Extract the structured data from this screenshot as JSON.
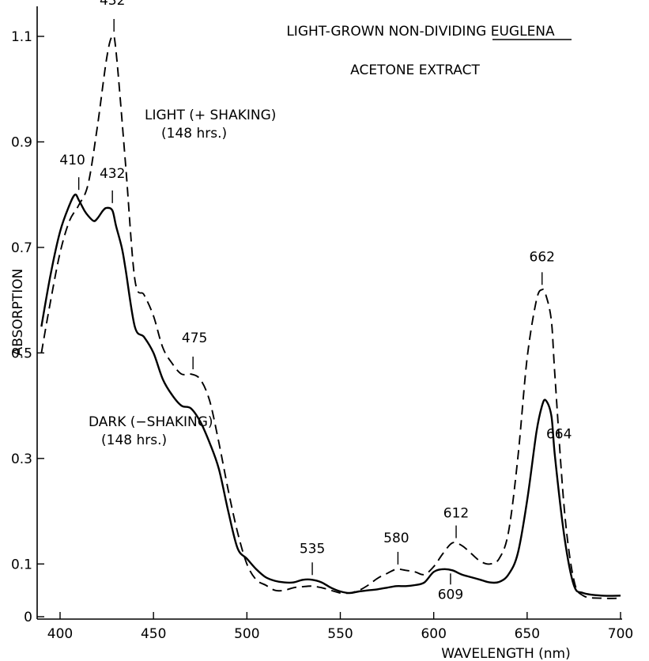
{
  "chart_data": {
    "type": "line",
    "title": "LIGHT-GROWN NON-DIVIDING EUGLENA",
    "subtitle": "ACETONE EXTRACT",
    "xlabel": "WAVELENGTH (nm)",
    "ylabel": "ABSORPTION",
    "xlim": [
      390,
      700
    ],
    "ylim": [
      0,
      1.16
    ],
    "x_ticks": [
      400,
      450,
      500,
      550,
      600,
      650,
      700
    ],
    "x_tick_labels": [
      "400",
      "450",
      "500",
      "550",
      "600",
      "650",
      "700"
    ],
    "y_ticks": [
      0,
      0.1,
      0.3,
      0.5,
      0.7,
      0.9,
      1.1
    ],
    "y_tick_labels": [
      "0",
      "0.1",
      "0.3",
      "0.5",
      "0.7",
      "0.9",
      "1.1"
    ],
    "grid": false,
    "series": [
      {
        "name": "LIGHT (+ SHAKING)",
        "name_line2": "(148 hrs.)",
        "style": "dashed",
        "x": [
          390,
          395,
          400,
          405,
          410,
          415,
          420,
          425,
          428,
          430,
          435,
          440,
          445,
          450,
          455,
          460,
          465,
          470,
          475,
          480,
          485,
          490,
          495,
          500,
          505,
          510,
          515,
          520,
          525,
          530,
          535,
          540,
          545,
          550,
          555,
          560,
          565,
          570,
          575,
          580,
          585,
          590,
          595,
          600,
          605,
          610,
          615,
          620,
          625,
          630,
          635,
          640,
          645,
          650,
          655,
          658,
          660,
          663,
          665,
          670,
          675,
          680,
          690,
          700
        ],
        "y": [
          0.5,
          0.6,
          0.69,
          0.75,
          0.78,
          0.82,
          0.93,
          1.06,
          1.1,
          1.07,
          0.86,
          0.64,
          0.61,
          0.57,
          0.51,
          0.48,
          0.46,
          0.46,
          0.45,
          0.41,
          0.33,
          0.24,
          0.16,
          0.1,
          0.07,
          0.06,
          0.05,
          0.05,
          0.055,
          0.057,
          0.058,
          0.055,
          0.05,
          0.045,
          0.045,
          0.05,
          0.06,
          0.073,
          0.082,
          0.09,
          0.088,
          0.085,
          0.08,
          0.095,
          0.12,
          0.14,
          0.135,
          0.12,
          0.105,
          0.1,
          0.11,
          0.16,
          0.3,
          0.49,
          0.6,
          0.62,
          0.61,
          0.56,
          0.45,
          0.2,
          0.07,
          0.04,
          0.035,
          0.035
        ],
        "annotations": [
          {
            "x": 428,
            "y": 1.1,
            "label": "432"
          },
          {
            "x": 472,
            "y": 0.46,
            "label": "475"
          },
          {
            "x": 580,
            "y": 0.09,
            "label": "580"
          },
          {
            "x": 612,
            "y": 0.14,
            "label": "612"
          },
          {
            "x": 658,
            "y": 0.62,
            "label": "662"
          }
        ]
      },
      {
        "name": "DARK (−SHAKING)",
        "name_line2": "(148 hrs.)",
        "style": "solid",
        "x": [
          390,
          395,
          400,
          405,
          408,
          410,
          413,
          415,
          418,
          420,
          423,
          425,
          428,
          430,
          433,
          435,
          440,
          445,
          450,
          455,
          460,
          465,
          470,
          475,
          480,
          485,
          490,
          495,
          500,
          505,
          510,
          515,
          520,
          525,
          530,
          535,
          540,
          545,
          550,
          555,
          560,
          565,
          570,
          575,
          580,
          585,
          590,
          595,
          600,
          605,
          610,
          615,
          620,
          625,
          630,
          635,
          640,
          645,
          650,
          655,
          658,
          660,
          663,
          665,
          670,
          675,
          680,
          690,
          700
        ],
        "y": [
          0.55,
          0.65,
          0.73,
          0.78,
          0.8,
          0.79,
          0.77,
          0.76,
          0.75,
          0.755,
          0.77,
          0.775,
          0.77,
          0.74,
          0.7,
          0.66,
          0.55,
          0.53,
          0.5,
          0.45,
          0.42,
          0.4,
          0.395,
          0.37,
          0.33,
          0.28,
          0.2,
          0.13,
          0.11,
          0.09,
          0.075,
          0.068,
          0.065,
          0.065,
          0.07,
          0.07,
          0.065,
          0.055,
          0.048,
          0.045,
          0.048,
          0.05,
          0.052,
          0.055,
          0.058,
          0.058,
          0.06,
          0.065,
          0.085,
          0.09,
          0.088,
          0.08,
          0.075,
          0.07,
          0.065,
          0.066,
          0.08,
          0.12,
          0.22,
          0.35,
          0.4,
          0.41,
          0.38,
          0.3,
          0.15,
          0.06,
          0.045,
          0.04,
          0.04
        ],
        "annotations": [
          {
            "x": 410,
            "y": 0.8,
            "label": "410"
          },
          {
            "x": 428,
            "y": 0.775,
            "label": "432"
          },
          {
            "x": 535,
            "y": 0.07,
            "label": "535"
          },
          {
            "x": 609,
            "y": 0.088,
            "label": "609"
          },
          {
            "x": 662,
            "y": 0.41,
            "label": "664"
          }
        ]
      }
    ]
  }
}
